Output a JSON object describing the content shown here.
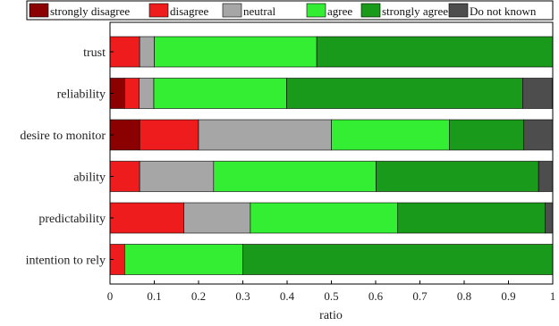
{
  "chart_data": {
    "type": "bar",
    "orientation": "horizontal",
    "stacked": true,
    "title": "",
    "xlabel": "ratio",
    "ylabel": "",
    "xlim": [
      0,
      1
    ],
    "xticks": [
      "0",
      "0.1",
      "0.2",
      "0.3",
      "0.4",
      "0.5",
      "0.6",
      "0.7",
      "0.8",
      "0.9",
      "1"
    ],
    "grid": false,
    "legend": "top",
    "categories": [
      "trust",
      "reliability",
      "desire to monitor",
      "ability",
      "predictability",
      "intention to rely"
    ],
    "series": [
      {
        "name": "strongly disagree",
        "color": "#8b0000",
        "values": [
          0.0,
          0.033,
          0.067,
          0.0,
          0.0,
          0.0
        ]
      },
      {
        "name": "disagree",
        "color": "#ee1c1c",
        "values": [
          0.067,
          0.033,
          0.133,
          0.067,
          0.167,
          0.033
        ]
      },
      {
        "name": "neutral",
        "color": "#a6a6a6",
        "values": [
          0.033,
          0.033,
          0.3,
          0.167,
          0.15,
          0.0
        ]
      },
      {
        "name": "agree",
        "color": "#33ee33",
        "values": [
          0.367,
          0.3,
          0.267,
          0.367,
          0.333,
          0.267
        ]
      },
      {
        "name": "strongly agree",
        "color": "#1a9a1a",
        "values": [
          0.533,
          0.533,
          0.167,
          0.367,
          0.333,
          0.7
        ]
      },
      {
        "name": "Do not known",
        "color": "#4d4d4d",
        "values": [
          0.0,
          0.067,
          0.067,
          0.033,
          0.017,
          0.0
        ]
      }
    ]
  }
}
